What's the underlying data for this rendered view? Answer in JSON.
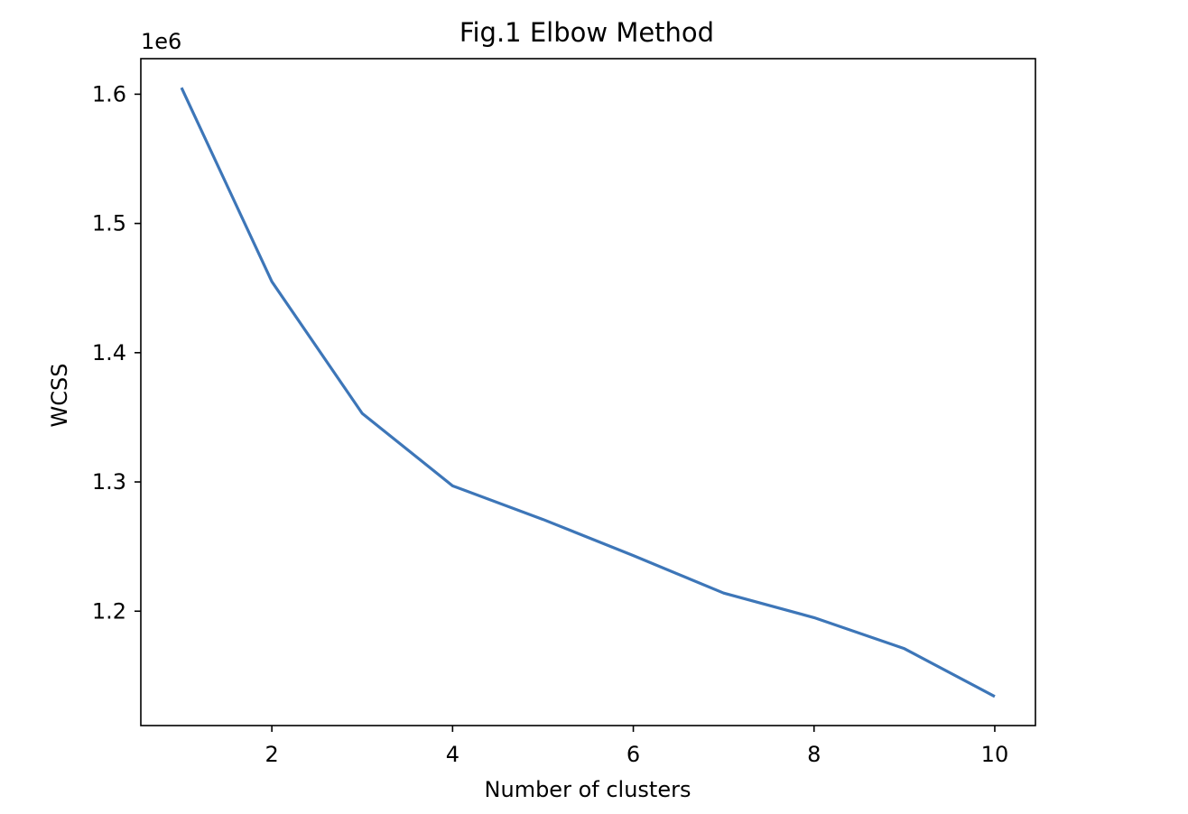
{
  "chart_data": {
    "type": "line",
    "title": "Fig.1 Elbow Method",
    "xlabel": "Number of clusters",
    "ylabel": "WCSS",
    "y_offset_label": "1e6",
    "x": [
      1,
      2,
      3,
      4,
      5,
      6,
      7,
      8,
      9,
      10
    ],
    "series": [
      {
        "values": [
          1605000,
          1455000,
          1353000,
          1297000,
          1271000,
          1243000,
          1214000,
          1195000,
          1171000,
          1134000
        ],
        "color": "#3d76b8"
      }
    ],
    "xlim": [
      0.55,
      10.45
    ],
    "ylim": [
      1111500,
      1627500
    ],
    "x_ticks": [
      2,
      4,
      6,
      8,
      10
    ],
    "x_tick_labels": [
      "2",
      "4",
      "6",
      "8",
      "10"
    ],
    "y_ticks": [
      1200000,
      1300000,
      1400000,
      1500000,
      1600000
    ],
    "y_tick_labels": [
      "1.2",
      "1.3",
      "1.4",
      "1.5",
      "1.6"
    ],
    "grid": false,
    "legend": "none"
  }
}
